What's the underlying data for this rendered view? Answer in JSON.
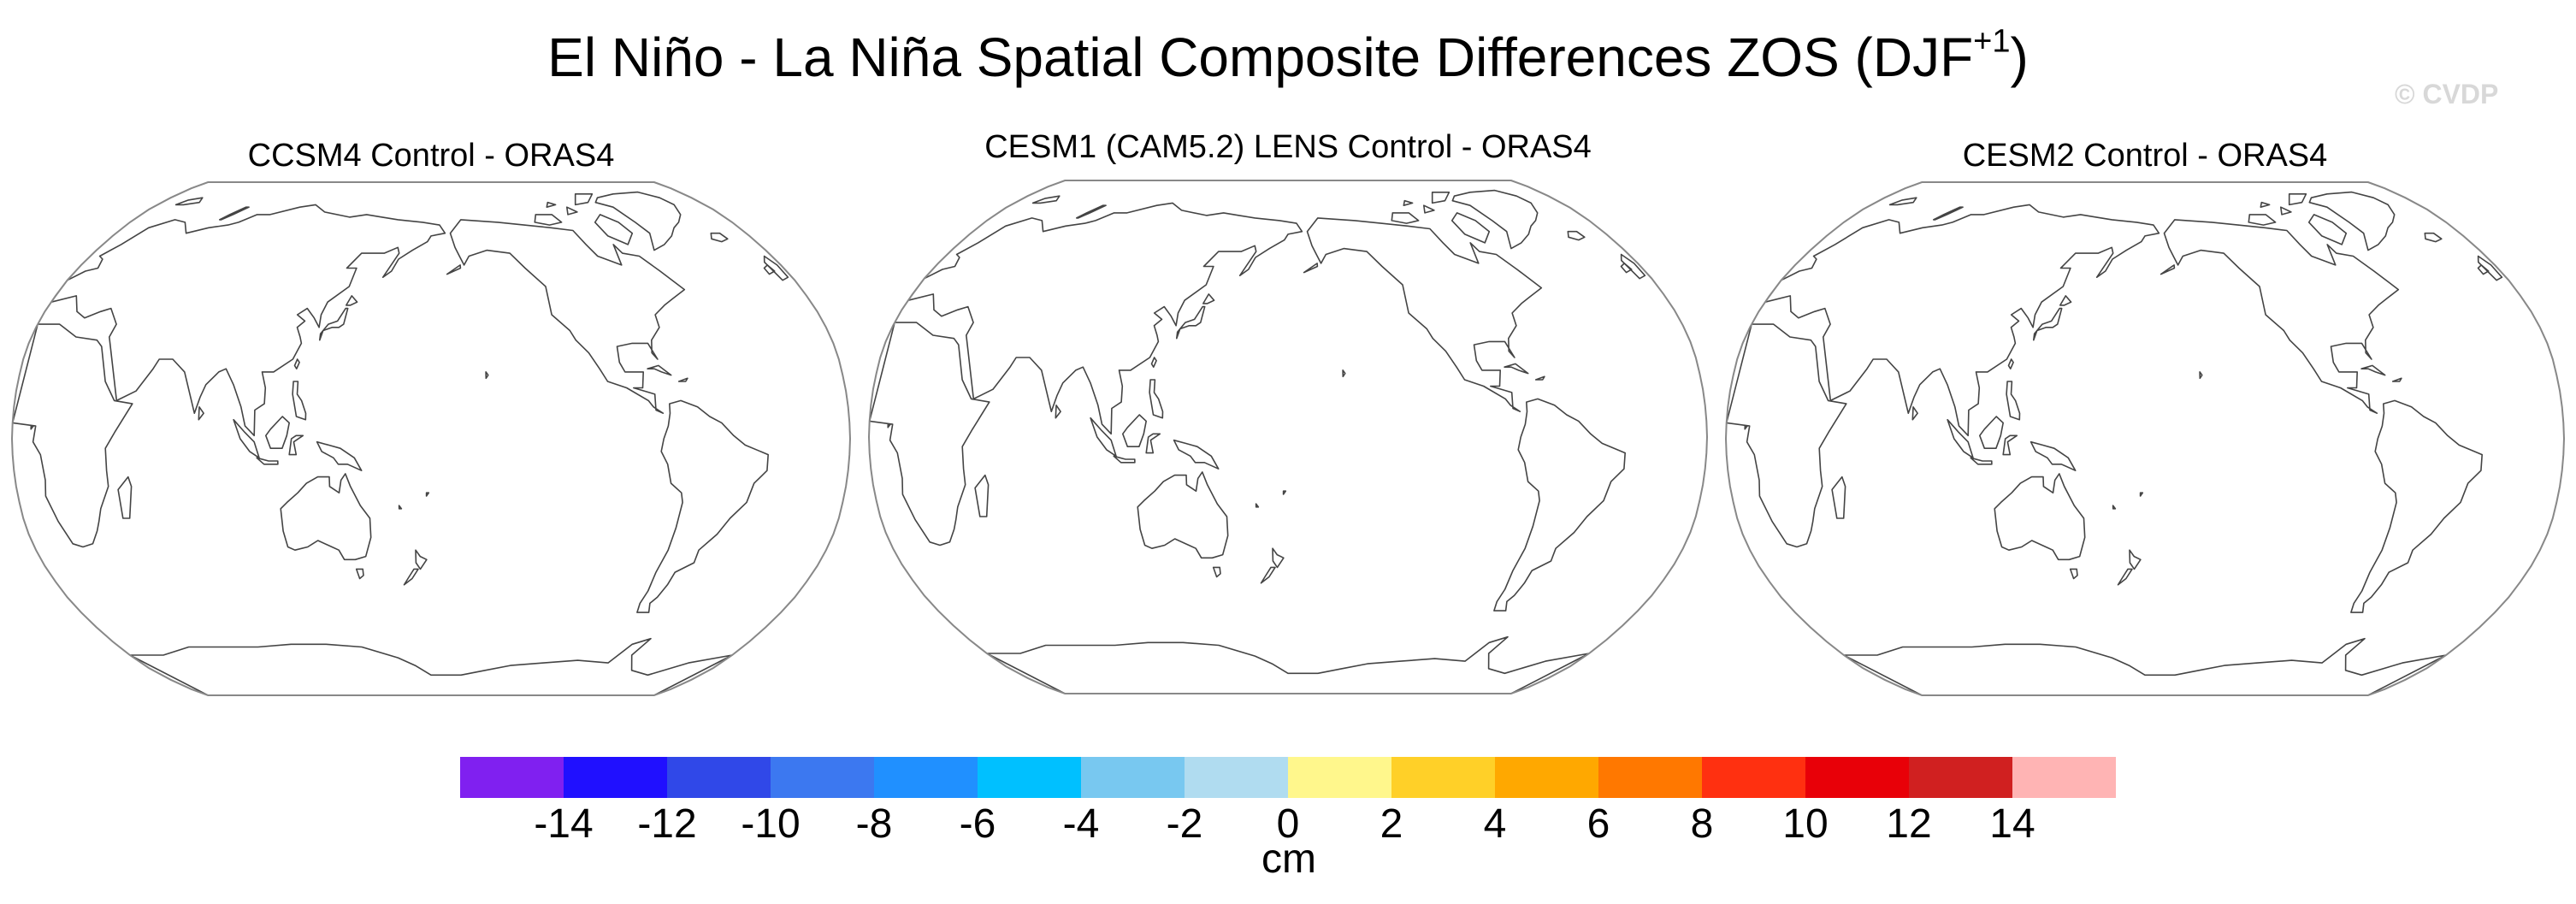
{
  "title": {
    "main": "El Niño - La Niña Spatial Composite Differences ZOS (DJF",
    "superscript": "+1",
    "close": ")"
  },
  "watermark": "© CVDP",
  "panels": [
    {
      "title": "CCSM4 Control - ORAS4"
    },
    {
      "title": "CESM1 (CAM5.2) LENS Control - ORAS4"
    },
    {
      "title": "CESM2 Control - ORAS4"
    }
  ],
  "map": {
    "projection": "Robinson",
    "center_longitude": "Pacific (~180°)",
    "coastline_color": "#444444",
    "border_color": "#888888",
    "fill": "none"
  },
  "colorbar": {
    "units": "cm",
    "colors": [
      "#8020F0",
      "#2010FF",
      "#3048E8",
      "#3C78F0",
      "#2090FF",
      "#00C0FF",
      "#78C8F0",
      "#B0DCF0",
      "#FFF78C",
      "#FFD028",
      "#FFA800",
      "#FF7800",
      "#FF3010",
      "#E80008",
      "#D02020",
      "#FFB4B4"
    ],
    "tick_labels": [
      "-14",
      "-12",
      "-10",
      "-8",
      "-6",
      "-4",
      "-2",
      "0",
      "2",
      "4",
      "6",
      "8",
      "10",
      "12",
      "14"
    ]
  }
}
